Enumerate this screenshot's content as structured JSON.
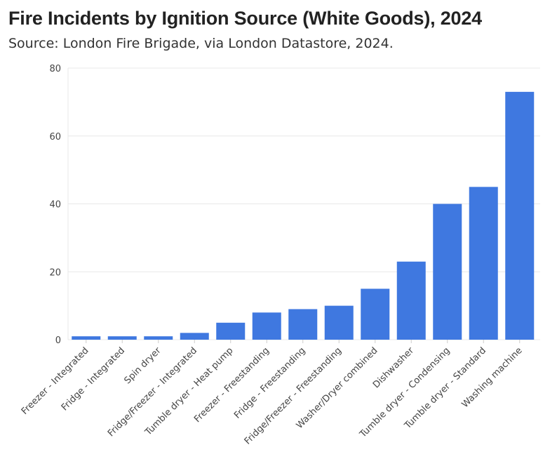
{
  "chart_data": {
    "type": "bar",
    "title": "Fire Incidents by Ignition Source (White Goods), 2024",
    "subtitle": "Source: London Fire Brigade, via London Datastore, 2024.",
    "categories": [
      "Freezer - Integrated",
      "Fridge - Integrated",
      "Spin dryer",
      "Fridge/Freezer - Integrated",
      "Tumble dryer - Heat pump",
      "Freezer - Freestanding",
      "Fridge - Freestanding",
      "Fridge/Freezer - Freestanding",
      "Washer/Dryer combined",
      "Dishwasher",
      "Tumble dryer - Condensing",
      "Tumble dryer - Standard",
      "Washing machine"
    ],
    "values": [
      1,
      1,
      1,
      2,
      5,
      8,
      9,
      10,
      15,
      23,
      40,
      45,
      73
    ],
    "ylim": [
      0,
      80
    ],
    "yticks": [
      0,
      20,
      40,
      60,
      80
    ],
    "xlabel": "",
    "ylabel": "",
    "grid": true,
    "bar_color": "#3f78e0"
  }
}
